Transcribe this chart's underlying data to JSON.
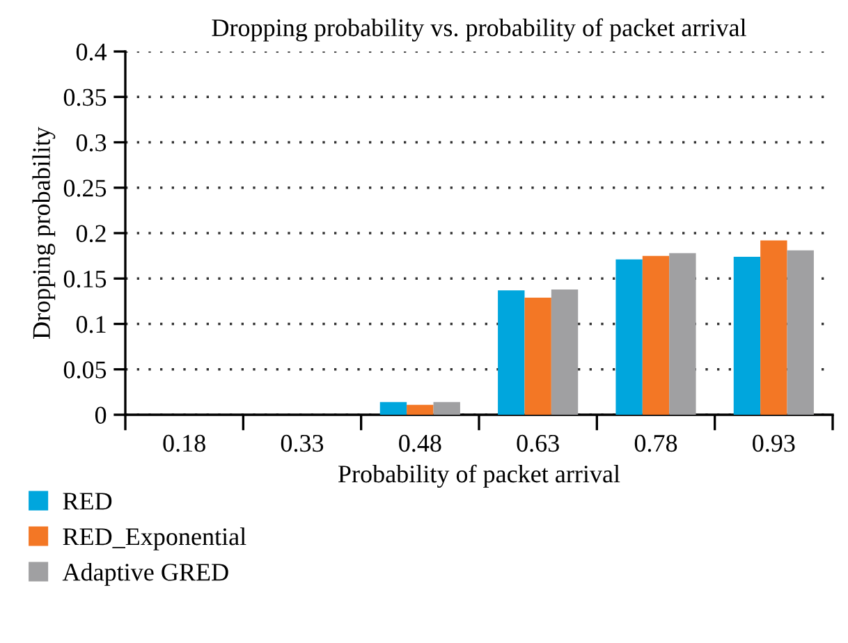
{
  "chart_data": {
    "type": "bar",
    "title": "Dropping probability vs. probability of packet arrival",
    "xlabel": "Probability of packet arrival",
    "ylabel": "Dropping probability",
    "categories": [
      "0.18",
      "0.33",
      "0.48",
      "0.63",
      "0.78",
      "0.93"
    ],
    "series": [
      {
        "name": "RED",
        "color": "#00a6dd",
        "values": [
          0,
          0,
          0.014,
          0.137,
          0.171,
          0.174
        ]
      },
      {
        "name": "RED_Exponential",
        "color": "#f37725",
        "values": [
          0,
          0,
          0.011,
          0.129,
          0.175,
          0.192
        ]
      },
      {
        "name": "Adaptive GRED",
        "color": "#a0a0a2",
        "values": [
          0,
          0,
          0.014,
          0.138,
          0.178,
          0.181
        ]
      }
    ],
    "ylim": [
      0,
      0.4
    ],
    "yticks": [
      0,
      0.05,
      0.1,
      0.15,
      0.2,
      0.25,
      0.3,
      0.35,
      0.4
    ],
    "grid": "y",
    "legend": "bottom left"
  }
}
